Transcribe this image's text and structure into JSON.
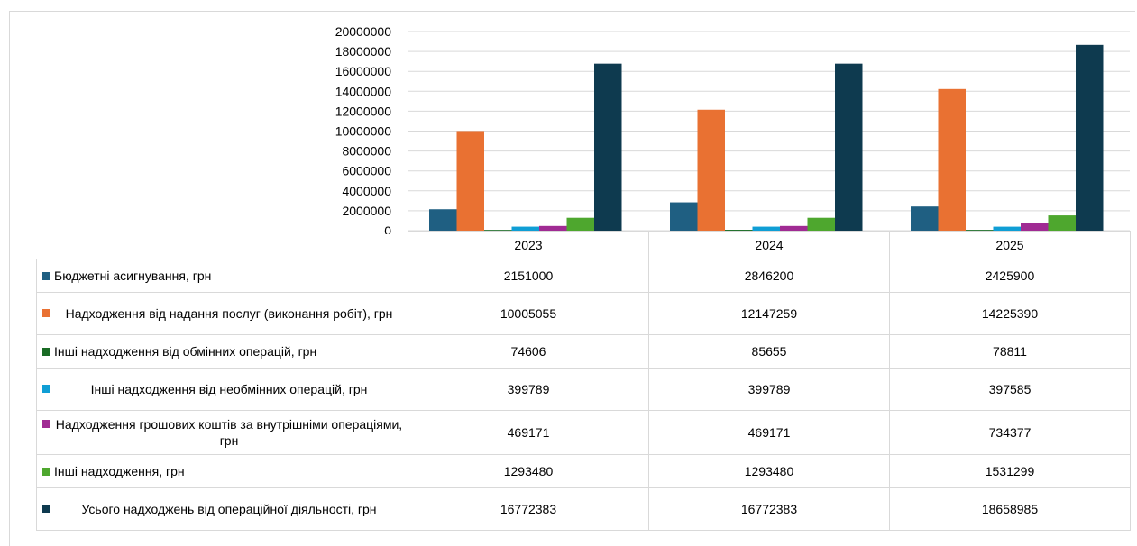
{
  "chart_data": {
    "type": "bar",
    "categories": [
      "2023",
      "2024",
      "2025"
    ],
    "ylim": [
      0,
      20000000
    ],
    "yticks": [
      0,
      2000000,
      4000000,
      6000000,
      8000000,
      10000000,
      12000000,
      14000000,
      16000000,
      18000000,
      20000000
    ],
    "ytick_labels": [
      "0",
      "2000000",
      "4000000",
      "6000000",
      "8000000",
      "10000000",
      "12000000",
      "14000000",
      "16000000",
      "18000000",
      "20000000"
    ],
    "grid": true,
    "legend": "data table below chart",
    "series": [
      {
        "name": "Бюджетні асигнування, грн",
        "color": "#1f5f82",
        "values": [
          2151000,
          2846200,
          2425900
        ]
      },
      {
        "name": "Надходження від надання послуг (виконання робіт), грн",
        "color": "#e97132",
        "values": [
          10005055,
          12147259,
          14225390
        ]
      },
      {
        "name": "Інші надходження від обмінних операцій, грн",
        "color": "#196b24",
        "values": [
          74606,
          85655,
          78811
        ]
      },
      {
        "name": "Інші надходження від необмінних операцій, грн",
        "color": "#0f9ed5",
        "values": [
          399789,
          399789,
          397585
        ]
      },
      {
        "name": "Надходження грошових коштів за внутрішніми операціями, грн",
        "color": "#a02b93",
        "values": [
          469171,
          469171,
          734377
        ]
      },
      {
        "name": "Інші надходження, грн",
        "color": "#4ea72e",
        "values": [
          1293480,
          1293480,
          1531299
        ]
      },
      {
        "name": "Усього надходжень від операційної діяльності, грн",
        "color": "#0e3a4f",
        "values": [
          16772383,
          16772383,
          18658985
        ]
      }
    ]
  },
  "table": {
    "years": [
      "2023",
      "2024",
      "2025"
    ],
    "rows": [
      {
        "label": "Бюджетні асигнування, грн",
        "values": [
          "2151000",
          "2846200",
          "2425900"
        ]
      },
      {
        "label": "Надходження від надання послуг (виконання робіт), грн",
        "values": [
          "10005055",
          "12147259",
          "14225390"
        ]
      },
      {
        "label": "Інші надходження від обмінних операцій, грн",
        "values": [
          "74606",
          "85655",
          "78811"
        ]
      },
      {
        "label": "Інші надходження від необмінних операцій, грн",
        "values": [
          "399789",
          "399789",
          "397585"
        ]
      },
      {
        "label": "Надходження грошових коштів за внутрішніми операціями, грн",
        "values": [
          "469171",
          "469171",
          "734377"
        ]
      },
      {
        "label": "Інші надходження, грн",
        "values": [
          "1293480",
          "1293480",
          "1531299"
        ]
      },
      {
        "label": "Усього надходжень від операційної діяльності, грн",
        "values": [
          "16772383",
          "16772383",
          "18658985"
        ]
      }
    ]
  }
}
